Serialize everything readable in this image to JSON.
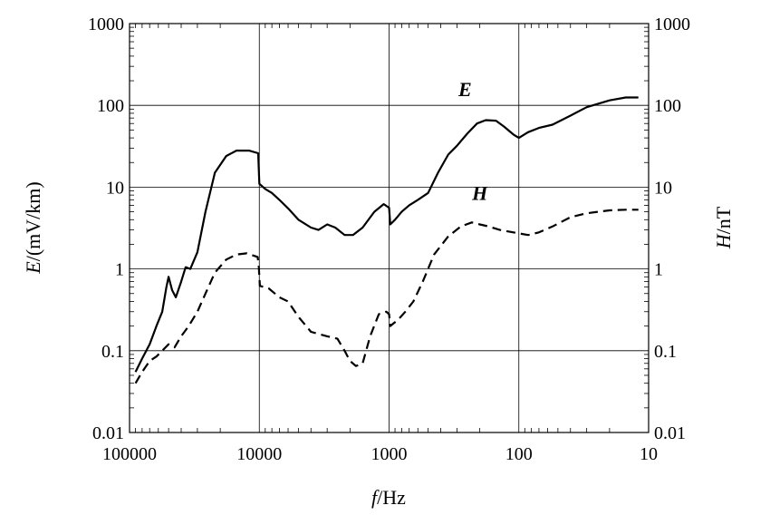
{
  "chart_data": {
    "type": "line",
    "x_scale": "log",
    "x_reversed": true,
    "y_scale": "log",
    "xlim": [
      100000,
      10
    ],
    "ylim": [
      0.01,
      1000
    ],
    "grid": true,
    "x_ticks": [
      "100000",
      "10000",
      "1000",
      "100",
      "10"
    ],
    "y_ticks": [
      "0.01",
      "0.1",
      "1",
      "10",
      "100",
      "1000"
    ],
    "xlabel": {
      "italic": "f",
      "rest": "/Hz"
    },
    "ylabel_left": {
      "italic": "E",
      "rest": "/(mV/km)"
    },
    "ylabel_right": {
      "italic": "H",
      "rest": "/nT"
    },
    "series": [
      {
        "name": "E",
        "style": "solid",
        "points": [
          [
            90000,
            0.055
          ],
          [
            80000,
            0.08
          ],
          [
            70000,
            0.12
          ],
          [
            62000,
            0.2
          ],
          [
            56000,
            0.3
          ],
          [
            52000,
            0.6
          ],
          [
            50000,
            0.8
          ],
          [
            47000,
            0.55
          ],
          [
            44000,
            0.45
          ],
          [
            40000,
            0.7
          ],
          [
            37000,
            1.05
          ],
          [
            34000,
            1.0
          ],
          [
            30000,
            1.6
          ],
          [
            26000,
            5.0
          ],
          [
            22000,
            15
          ],
          [
            18000,
            24
          ],
          [
            15000,
            28
          ],
          [
            12000,
            28
          ],
          [
            10200,
            26
          ],
          [
            10000,
            11
          ],
          [
            9000,
            9.5
          ],
          [
            8000,
            8.5
          ],
          [
            7000,
            7.0
          ],
          [
            6000,
            5.5
          ],
          [
            5000,
            4.0
          ],
          [
            4000,
            3.2
          ],
          [
            3500,
            3.0
          ],
          [
            3000,
            3.5
          ],
          [
            2600,
            3.2
          ],
          [
            2200,
            2.6
          ],
          [
            1900,
            2.6
          ],
          [
            1600,
            3.2
          ],
          [
            1300,
            5.0
          ],
          [
            1100,
            6.2
          ],
          [
            1000,
            5.6
          ],
          [
            980,
            3.5
          ],
          [
            900,
            4.0
          ],
          [
            800,
            5.0
          ],
          [
            700,
            6.0
          ],
          [
            600,
            7.0
          ],
          [
            500,
            8.5
          ],
          [
            420,
            15
          ],
          [
            350,
            25
          ],
          [
            300,
            32
          ],
          [
            250,
            45
          ],
          [
            210,
            60
          ],
          [
            180,
            66
          ],
          [
            150,
            65
          ],
          [
            130,
            55
          ],
          [
            110,
            44
          ],
          [
            100,
            40
          ],
          [
            85,
            47
          ],
          [
            70,
            53
          ],
          [
            55,
            58
          ],
          [
            40,
            75
          ],
          [
            30,
            95
          ],
          [
            20,
            115
          ],
          [
            15,
            125
          ],
          [
            12,
            125
          ]
        ]
      },
      {
        "name": "H",
        "style": "dashed",
        "points": [
          [
            90000,
            0.04
          ],
          [
            80000,
            0.055
          ],
          [
            70000,
            0.075
          ],
          [
            62000,
            0.085
          ],
          [
            56000,
            0.1
          ],
          [
            50000,
            0.12
          ],
          [
            45000,
            0.11
          ],
          [
            40000,
            0.15
          ],
          [
            35000,
            0.2
          ],
          [
            30000,
            0.3
          ],
          [
            26000,
            0.5
          ],
          [
            22000,
            0.9
          ],
          [
            18000,
            1.3
          ],
          [
            15000,
            1.5
          ],
          [
            12500,
            1.55
          ],
          [
            10300,
            1.4
          ],
          [
            10100,
            1.1
          ],
          [
            9900,
            0.62
          ],
          [
            8500,
            0.58
          ],
          [
            7000,
            0.45
          ],
          [
            6000,
            0.4
          ],
          [
            5000,
            0.26
          ],
          [
            4000,
            0.17
          ],
          [
            3000,
            0.15
          ],
          [
            2500,
            0.14
          ],
          [
            2200,
            0.1
          ],
          [
            2000,
            0.075
          ],
          [
            1800,
            0.065
          ],
          [
            1600,
            0.07
          ],
          [
            1400,
            0.15
          ],
          [
            1200,
            0.28
          ],
          [
            1050,
            0.3
          ],
          [
            1000,
            0.28
          ],
          [
            980,
            0.2
          ],
          [
            850,
            0.24
          ],
          [
            750,
            0.3
          ],
          [
            650,
            0.4
          ],
          [
            550,
            0.7
          ],
          [
            450,
            1.5
          ],
          [
            350,
            2.5
          ],
          [
            280,
            3.3
          ],
          [
            230,
            3.7
          ],
          [
            200,
            3.5
          ],
          [
            170,
            3.3
          ],
          [
            140,
            3.0
          ],
          [
            110,
            2.8
          ],
          [
            85,
            2.6
          ],
          [
            70,
            2.8
          ],
          [
            55,
            3.3
          ],
          [
            40,
            4.3
          ],
          [
            30,
            4.8
          ],
          [
            20,
            5.2
          ],
          [
            15,
            5.3
          ],
          [
            12,
            5.3
          ]
        ]
      }
    ],
    "annotations": [
      {
        "text": "E",
        "series": "E",
        "x": 260,
        "y": 130
      },
      {
        "text": "H",
        "series": "H",
        "x": 200,
        "y": 7
      }
    ]
  }
}
